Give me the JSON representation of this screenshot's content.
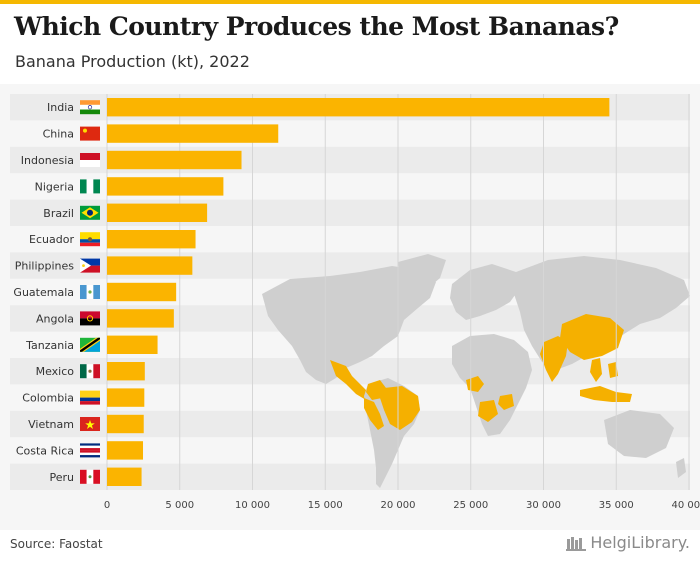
{
  "header": {
    "title": "Which Country Produces the Most Bananas?",
    "subtitle": "Banana Production (kt), 2022"
  },
  "footer": {
    "source": "Source: Faostat",
    "brand": "HelgiLibrary."
  },
  "colors": {
    "bar": "#fbb400",
    "accent": "#f5b800",
    "map_land": "#cfcfcf",
    "map_highlight": "#f5b000"
  },
  "chart_data": {
    "type": "bar",
    "orientation": "horizontal",
    "title": "Which Country Produces the Most Bananas?",
    "subtitle": "Banana Production (kt), 2022",
    "categories": [
      "India",
      "China",
      "Indonesia",
      "Nigeria",
      "Brazil",
      "Ecuador",
      "Philippines",
      "Guatemala",
      "Angola",
      "Tanzania",
      "Mexico",
      "Colombia",
      "Vietnam",
      "Costa Rica",
      "Peru"
    ],
    "values": [
      34528,
      11770,
      9245,
      8000,
      6880,
      6085,
      5866,
      4753,
      4594,
      3475,
      2598,
      2565,
      2524,
      2475,
      2376
    ],
    "xlim": [
      0,
      40000
    ],
    "xticks": [
      0,
      5000,
      10000,
      15000,
      20000,
      25000,
      30000,
      35000,
      40000
    ],
    "xtick_labels": [
      "0",
      "5 000",
      "10 000",
      "15 000",
      "20 000",
      "25 000",
      "30 000",
      "35 000",
      "40 000"
    ],
    "xlabel": "",
    "ylabel": "",
    "grid": true,
    "background_image": "world map with banana-producing countries highlighted"
  }
}
